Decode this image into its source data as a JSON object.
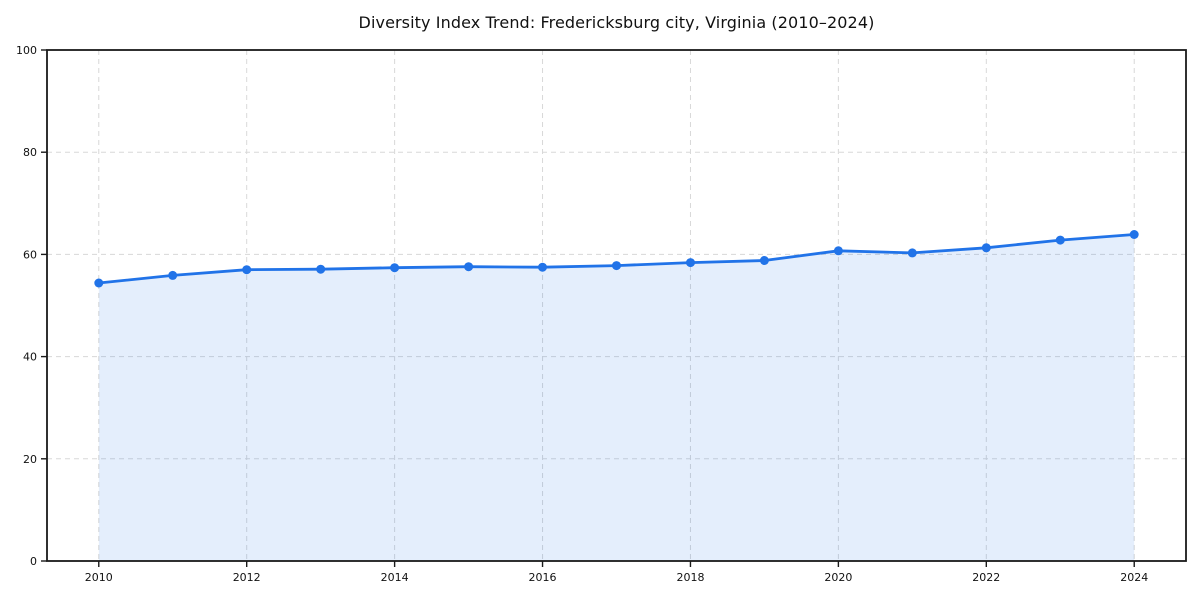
{
  "chart_data": {
    "type": "line",
    "title": "Diversity Index Trend: Fredericksburg city, Virginia (2010–2024)",
    "x": [
      2010,
      2011,
      2012,
      2013,
      2014,
      2015,
      2016,
      2017,
      2018,
      2019,
      2020,
      2021,
      2022,
      2023,
      2024
    ],
    "values": [
      54.4,
      55.9,
      57.0,
      57.1,
      57.4,
      57.6,
      57.5,
      57.8,
      58.4,
      58.8,
      60.7,
      60.3,
      61.3,
      62.8,
      63.9
    ],
    "xlabel": "",
    "ylabel": "",
    "xlim": [
      2009.3,
      2024.7
    ],
    "ylim": [
      0,
      100
    ],
    "xticks": [
      2010,
      2012,
      2014,
      2016,
      2018,
      2020,
      2022,
      2024
    ],
    "yticks": [
      0,
      20,
      40,
      60,
      80,
      100
    ],
    "grid": true,
    "grid_style": "dashed",
    "legend_position": "none",
    "marker": "circle",
    "colors": {
      "line": "#2173e8",
      "marker": "#2173e8",
      "area_fill": "rgba(33,115,232,0.12)",
      "grid": "#d8d8d8",
      "axis": "#1a1a1a",
      "text": "#111111",
      "background": "#ffffff"
    }
  }
}
